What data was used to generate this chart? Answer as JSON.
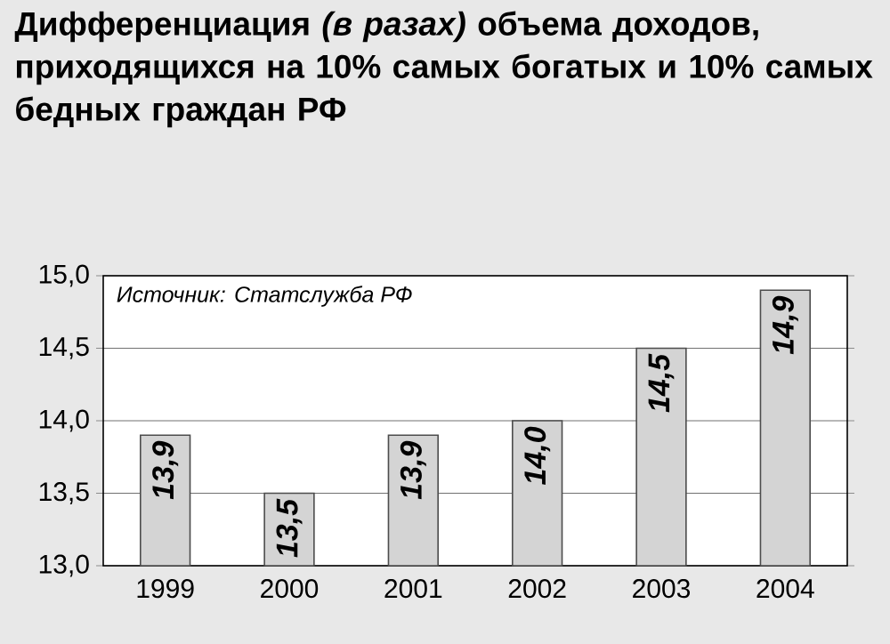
{
  "chart_data": {
    "type": "bar",
    "title": "Дифференциация *(в разах)* объема доходов, приходящихся на 10% самых богатых и 10% самых бедных граждан РФ",
    "categories": [
      "1999",
      "2000",
      "2001",
      "2002",
      "2003",
      "2004"
    ],
    "values": [
      13.9,
      13.5,
      13.9,
      14.0,
      14.5,
      14.9
    ],
    "value_labels": [
      "13,9",
      "13,5",
      "13,9",
      "14,0",
      "14,5",
      "14,9"
    ],
    "color": "#d4d4d4",
    "ylim": [
      13.0,
      15.0
    ],
    "yticks": [
      {
        "value": 13.0,
        "label": "13,0"
      },
      {
        "value": 13.5,
        "label": "13,5"
      },
      {
        "value": 14.0,
        "label": "14,0"
      },
      {
        "value": 14.5,
        "label": "14,5"
      },
      {
        "value": 15.0,
        "label": "15,0"
      }
    ],
    "grid": "y",
    "annotations": [
      "Источник: Статслужба РФ"
    ]
  }
}
